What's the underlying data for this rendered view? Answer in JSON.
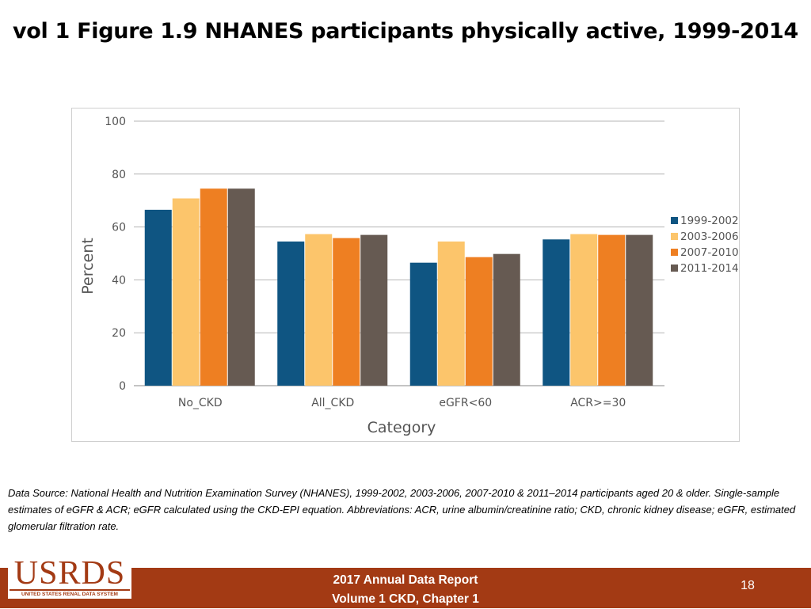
{
  "slide": {
    "title": "vol 1 Figure 1.9 NHANES participants physically active, 1999-2014",
    "data_source": "Data Source: National Health and Nutrition Examination Survey (NHANES), 1999-2002, 2003-2006, 2007-2010 & 2011–2014 participants aged 20 & older. Single-sample estimates of eGFR & ACR; eGFR calculated using the CKD-EPI equation. Abbreviations: ACR, urine albumin/creatinine ratio; CKD, chronic kidney disease; eGFR, estimated glomerular filtration rate."
  },
  "footer": {
    "logo_text": "USRDS",
    "logo_subtext": "UNITED STATES RENAL DATA SYSTEM",
    "line1": "2017 Annual Data Report",
    "line2": "Volume 1 CKD, Chapter 1",
    "page_number": "18"
  },
  "chart_data": {
    "type": "bar",
    "xlabel": "Category",
    "ylabel": "Percent",
    "ylim": [
      0,
      100
    ],
    "yticks": [
      0,
      20,
      40,
      60,
      80,
      100
    ],
    "grid": true,
    "legend_position": "right",
    "categories": [
      "No_CKD",
      "All_CKD",
      "eGFR<60",
      "ACR>=30"
    ],
    "series": [
      {
        "name": "1999-2002",
        "color": "#0f5582",
        "values": [
          66.5,
          54.5,
          46.5,
          55.3
        ]
      },
      {
        "name": "2003-2006",
        "color": "#fcc56b",
        "values": [
          70.8,
          57.3,
          54.5,
          57.3
        ]
      },
      {
        "name": "2007-2010",
        "color": "#ee7f22",
        "values": [
          74.5,
          55.8,
          48.6,
          57.0
        ]
      },
      {
        "name": "2011-2014",
        "color": "#665a52",
        "values": [
          74.5,
          57.0,
          49.8,
          57.0
        ]
      }
    ]
  }
}
